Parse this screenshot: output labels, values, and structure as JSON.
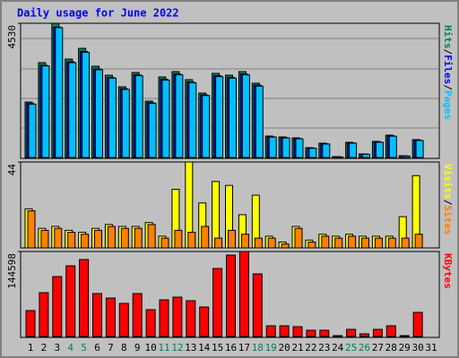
{
  "title": "Daily usage for June 2022",
  "separator": "/",
  "chart_data": [
    {
      "type": "bar",
      "ylim": [
        0,
        4530
      ],
      "yticks": [
        4530
      ],
      "series": [
        {
          "name": "Hits",
          "color": "#00805c",
          "values": [
            1872,
            3201,
            4530,
            3322,
            3684,
            3080,
            2778,
            2386,
            2869,
            1903,
            2718,
            2899,
            2627,
            2174,
            2839,
            2778,
            2899,
            2507,
            725,
            695,
            664,
            332,
            483,
            30,
            513,
            121,
            544,
            755,
            60,
            604,
            0
          ]
        },
        {
          "name": "Files",
          "color": "#0000ff",
          "values": [
            1820,
            3110,
            4400,
            3230,
            3580,
            2990,
            2700,
            2320,
            2790,
            1850,
            2640,
            2820,
            2550,
            2110,
            2760,
            2700,
            2820,
            2440,
            700,
            670,
            640,
            320,
            465,
            25,
            495,
            115,
            525,
            730,
            55,
            585,
            0
          ]
        },
        {
          "name": "Pages",
          "color": "#00c0ff",
          "values": [
            1800,
            3090,
            4380,
            3200,
            3550,
            2960,
            2680,
            2300,
            2760,
            1830,
            2610,
            2790,
            2520,
            2090,
            2730,
            2680,
            2790,
            2410,
            690,
            660,
            630,
            310,
            455,
            20,
            485,
            110,
            515,
            720,
            50,
            575,
            0
          ]
        }
      ]
    },
    {
      "type": "bar",
      "ylim": [
        0,
        44
      ],
      "yticks": [
        44
      ],
      "series": [
        {
          "name": "Visits",
          "color": "#ffff00",
          "values": [
            20,
            10,
            11,
            9,
            8,
            10,
            12,
            11,
            11,
            13,
            6,
            30,
            44,
            23,
            34,
            32,
            17,
            27,
            6,
            3,
            11,
            4,
            7,
            6,
            7,
            6,
            6,
            6,
            16,
            37,
            0
          ]
        },
        {
          "name": "Sites",
          "color": "#ff8000",
          "values": [
            19,
            9,
            10,
            8,
            7,
            9,
            11,
            10,
            10,
            12,
            5,
            9,
            8,
            11,
            5,
            9,
            7,
            5,
            5,
            2,
            10,
            3,
            6,
            5,
            6,
            5,
            5,
            5,
            5,
            7,
            0
          ]
        }
      ]
    },
    {
      "type": "bar",
      "ylim": [
        0,
        144598
      ],
      "yticks": [
        144598
      ],
      "categories": [
        "1",
        "2",
        "3",
        "4",
        "5",
        "6",
        "7",
        "8",
        "9",
        "10",
        "11",
        "12",
        "13",
        "14",
        "15",
        "16",
        "17",
        "18",
        "19",
        "20",
        "21",
        "22",
        "23",
        "24",
        "25",
        "26",
        "27",
        "28",
        "29",
        "30",
        "31"
      ],
      "category_colors": [
        "#000000",
        "#000000",
        "#000000",
        "#00805c",
        "#00805c",
        "#000000",
        "#000000",
        "#000000",
        "#000000",
        "#000000",
        "#00805c",
        "#00805c",
        "#000000",
        "#000000",
        "#000000",
        "#000000",
        "#000000",
        "#00805c",
        "#00805c",
        "#000000",
        "#000000",
        "#000000",
        "#000000",
        "#000000",
        "#00805c",
        "#00805c",
        "#000000",
        "#000000",
        "#000000",
        "#000000",
        "#000000"
      ],
      "series": [
        {
          "name": "KBytes",
          "color": "#ff0000",
          "values": [
            44140,
            74580,
            101980,
            120240,
            130900,
            73060,
            65450,
            56320,
            73060,
            45660,
            62400,
            66970,
            60880,
            50230,
            115680,
            138510,
            144598,
            106550,
            18260,
            18260,
            16740,
            10650,
            10650,
            1520,
            12180,
            4570,
            12180,
            18260,
            1520,
            41100,
            0
          ]
        }
      ]
    }
  ]
}
